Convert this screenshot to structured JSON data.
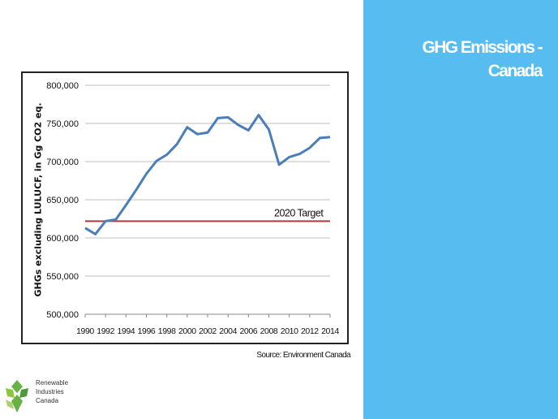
{
  "slide": {
    "title": "GHG Emissions - Canada",
    "source": "Source: Environment Canada",
    "logo_lines": [
      "Renewable",
      "Industries",
      "Canada"
    ]
  },
  "colors": {
    "panel": "#57bdf0",
    "series": "#4a7ebb",
    "target": "#b03a3a",
    "logo_green": "#66b245"
  },
  "chart_data": {
    "type": "line",
    "title": "",
    "xlabel": "",
    "ylabel": "GHGs excluding LULUCF, in Gg CO2 eq.",
    "x": [
      1990,
      1991,
      1992,
      1993,
      1994,
      1995,
      1996,
      1997,
      1998,
      1999,
      2000,
      2001,
      2002,
      2003,
      2004,
      2005,
      2006,
      2007,
      2008,
      2009,
      2010,
      2011,
      2012,
      2013,
      2014
    ],
    "series": [
      {
        "name": "",
        "values": [
          613000,
          605000,
          622000,
          624000,
          643000,
          663000,
          684000,
          701000,
          709000,
          723000,
          745000,
          736000,
          738000,
          757000,
          758000,
          748000,
          741000,
          761000,
          742000,
          696000,
          706000,
          710000,
          718000,
          731000,
          732000
        ]
      }
    ],
    "target": {
      "label": "2020 Target",
      "value": 622000
    },
    "xticks": [
      "1990",
      "1992",
      "1994",
      "1996",
      "1998",
      "2000",
      "2002",
      "2004",
      "2006",
      "2008",
      "2010",
      "2012",
      "2014"
    ],
    "yticks": [
      "500,000",
      "550,000",
      "600,000",
      "650,000",
      "700,000",
      "750,000",
      "800,000"
    ],
    "ylim": [
      500000,
      800000
    ],
    "xlim": [
      1990,
      2014
    ],
    "grid": true,
    "legend": "none"
  }
}
